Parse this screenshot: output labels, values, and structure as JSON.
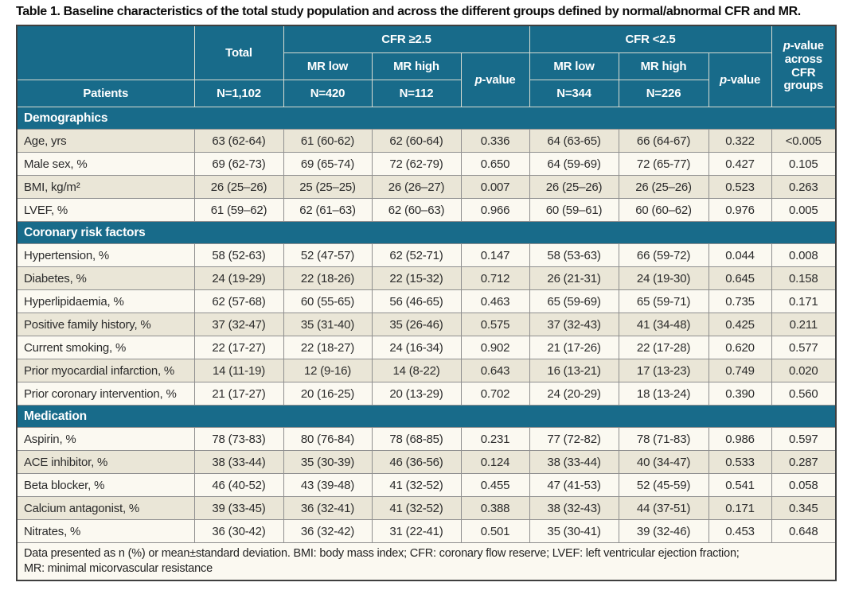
{
  "title": "Table 1. Baseline characteristics of the total study population and across the different groups defined by normal/abnormal CFR and MR.",
  "colors": {
    "header_teal": "#186b8a",
    "row_cream": "#eae6d7",
    "row_ivory": "#fbf9f1",
    "border_gray": "#8f8f8f",
    "outer_border": "#3f3f3f",
    "text_dark": "#2b2b2b"
  },
  "header": {
    "patients_label": "Patients",
    "total": {
      "label": "Total",
      "n": "N=1,102"
    },
    "cfr_high": {
      "label": "CFR ≥2.5",
      "mr_low": "MR low",
      "mr_high": "MR high",
      "n_mr_low": "N=420",
      "n_mr_high": "N=112"
    },
    "cfr_low": {
      "label": "CFR <2.5",
      "mr_low": "MR low",
      "mr_high": "MR high",
      "n_mr_low": "N=344",
      "n_mr_high": "N=226"
    },
    "p_label": {
      "p": "p",
      "rest": "-value"
    },
    "p_across": {
      "p": "p",
      "rest": "-value across CFR groups"
    }
  },
  "column_order": [
    "Total",
    "CFR ≥2.5 MR low",
    "CFR ≥2.5 MR high",
    "p-value",
    "CFR <2.5 MR low",
    "CFR <2.5 MR high",
    "p-value",
    "p-value across CFR groups"
  ],
  "sections": [
    {
      "name": "Demographics",
      "rows": [
        {
          "label": "Age, yrs",
          "shaded": true,
          "values": [
            "63 (62-64)",
            "61 (60-62)",
            "62 (60-64)",
            "0.336",
            "64 (63-65)",
            "66 (64-67)",
            "0.322",
            "<0.005"
          ]
        },
        {
          "label": "Male sex, %",
          "shaded": false,
          "values": [
            "69 (62-73)",
            "69 (65-74)",
            "72 (62-79)",
            "0.650",
            "64 (59-69)",
            "72 (65-77)",
            "0.427",
            "0.105"
          ]
        },
        {
          "label": "BMI, kg/m²",
          "shaded": true,
          "values": [
            "26 (25–26)",
            "25 (25–25)",
            "26 (26–27)",
            "0.007",
            "26 (25–26)",
            "26 (25–26)",
            "0.523",
            "0.263"
          ]
        },
        {
          "label": "LVEF, %",
          "shaded": false,
          "values": [
            "61 (59–62)",
            "62 (61–63)",
            "62 (60–63)",
            "0.966",
            "60 (59–61)",
            "60 (60–62)",
            "0.976",
            "0.005"
          ]
        }
      ]
    },
    {
      "name": "Coronary risk factors",
      "rows": [
        {
          "label": "Hypertension, %",
          "shaded": false,
          "values": [
            "58 (52-63)",
            "52 (47-57)",
            "62 (52-71)",
            "0.147",
            "58 (53-63)",
            "66 (59-72)",
            "0.044",
            "0.008"
          ]
        },
        {
          "label": "Diabetes, %",
          "shaded": true,
          "values": [
            "24 (19-29)",
            "22 (18-26)",
            "22 (15-32)",
            "0.712",
            "26 (21-31)",
            "24 (19-30)",
            "0.645",
            "0.158"
          ]
        },
        {
          "label": "Hyperlipidaemia, %",
          "shaded": false,
          "values": [
            "62 (57-68)",
            "60 (55-65)",
            "56 (46-65)",
            "0.463",
            "65 (59-69)",
            "65 (59-71)",
            "0.735",
            "0.171"
          ]
        },
        {
          "label": "Positive family history, %",
          "shaded": true,
          "values": [
            "37 (32-47)",
            "35 (31-40)",
            "35 (26-46)",
            "0.575",
            "37 (32-43)",
            "41 (34-48)",
            "0.425",
            "0.211"
          ]
        },
        {
          "label": "Current smoking, %",
          "shaded": false,
          "values": [
            "22 (17-27)",
            "22 (18-27)",
            "24 (16-34)",
            "0.902",
            "21 (17-26)",
            "22 (17-28)",
            "0.620",
            "0.577"
          ]
        },
        {
          "label": "Prior myocardial infarction, %",
          "shaded": true,
          "values": [
            "14 (11-19)",
            "12 (9-16)",
            "14 (8-22)",
            "0.643",
            "16 (13-21)",
            "17 (13-23)",
            "0.749",
            "0.020"
          ]
        },
        {
          "label": "Prior coronary intervention, %",
          "shaded": false,
          "values": [
            "21 (17-27)",
            "20 (16-25)",
            "20 (13-29)",
            "0.702",
            "24 (20-29)",
            "18 (13-24)",
            "0.390",
            "0.560"
          ]
        }
      ]
    },
    {
      "name": "Medication",
      "rows": [
        {
          "label": "Aspirin, %",
          "shaded": false,
          "values": [
            "78 (73-83)",
            "80 (76-84)",
            "78 (68-85)",
            "0.231",
            "77 (72-82)",
            "78 (71-83)",
            "0.986",
            "0.597"
          ]
        },
        {
          "label": "ACE inhibitor, %",
          "shaded": true,
          "values": [
            "38 (33-44)",
            "35 (30-39)",
            "46 (36-56)",
            "0.124",
            "38 (33-44)",
            "40 (34-47)",
            "0.533",
            "0.287"
          ]
        },
        {
          "label": "Beta blocker, %",
          "shaded": false,
          "values": [
            "46 (40-52)",
            "43 (39-48)",
            "41 (32-52)",
            "0.455",
            "47 (41-53)",
            "52 (45-59)",
            "0.541",
            "0.058"
          ]
        },
        {
          "label": "Calcium antagonist, %",
          "shaded": true,
          "values": [
            "39 (33-45)",
            "36 (32-41)",
            "41 (32-52)",
            "0.388",
            "38 (32-43)",
            "44 (37-51)",
            "0.171",
            "0.345"
          ]
        },
        {
          "label": "Nitrates, %",
          "shaded": false,
          "values": [
            "36 (30-42)",
            "36 (32-42)",
            "31 (22-41)",
            "0.501",
            "35 (30-41)",
            "39 (32-46)",
            "0.453",
            "0.648"
          ]
        }
      ]
    }
  ],
  "footnote": {
    "line1": "Data presented as n (%) or mean±standard deviation. BMI: body mass index; CFR: coronary flow reserve; LVEF: left ventricular ejection fraction;",
    "line2": "MR: minimal micorvascular resistance"
  }
}
